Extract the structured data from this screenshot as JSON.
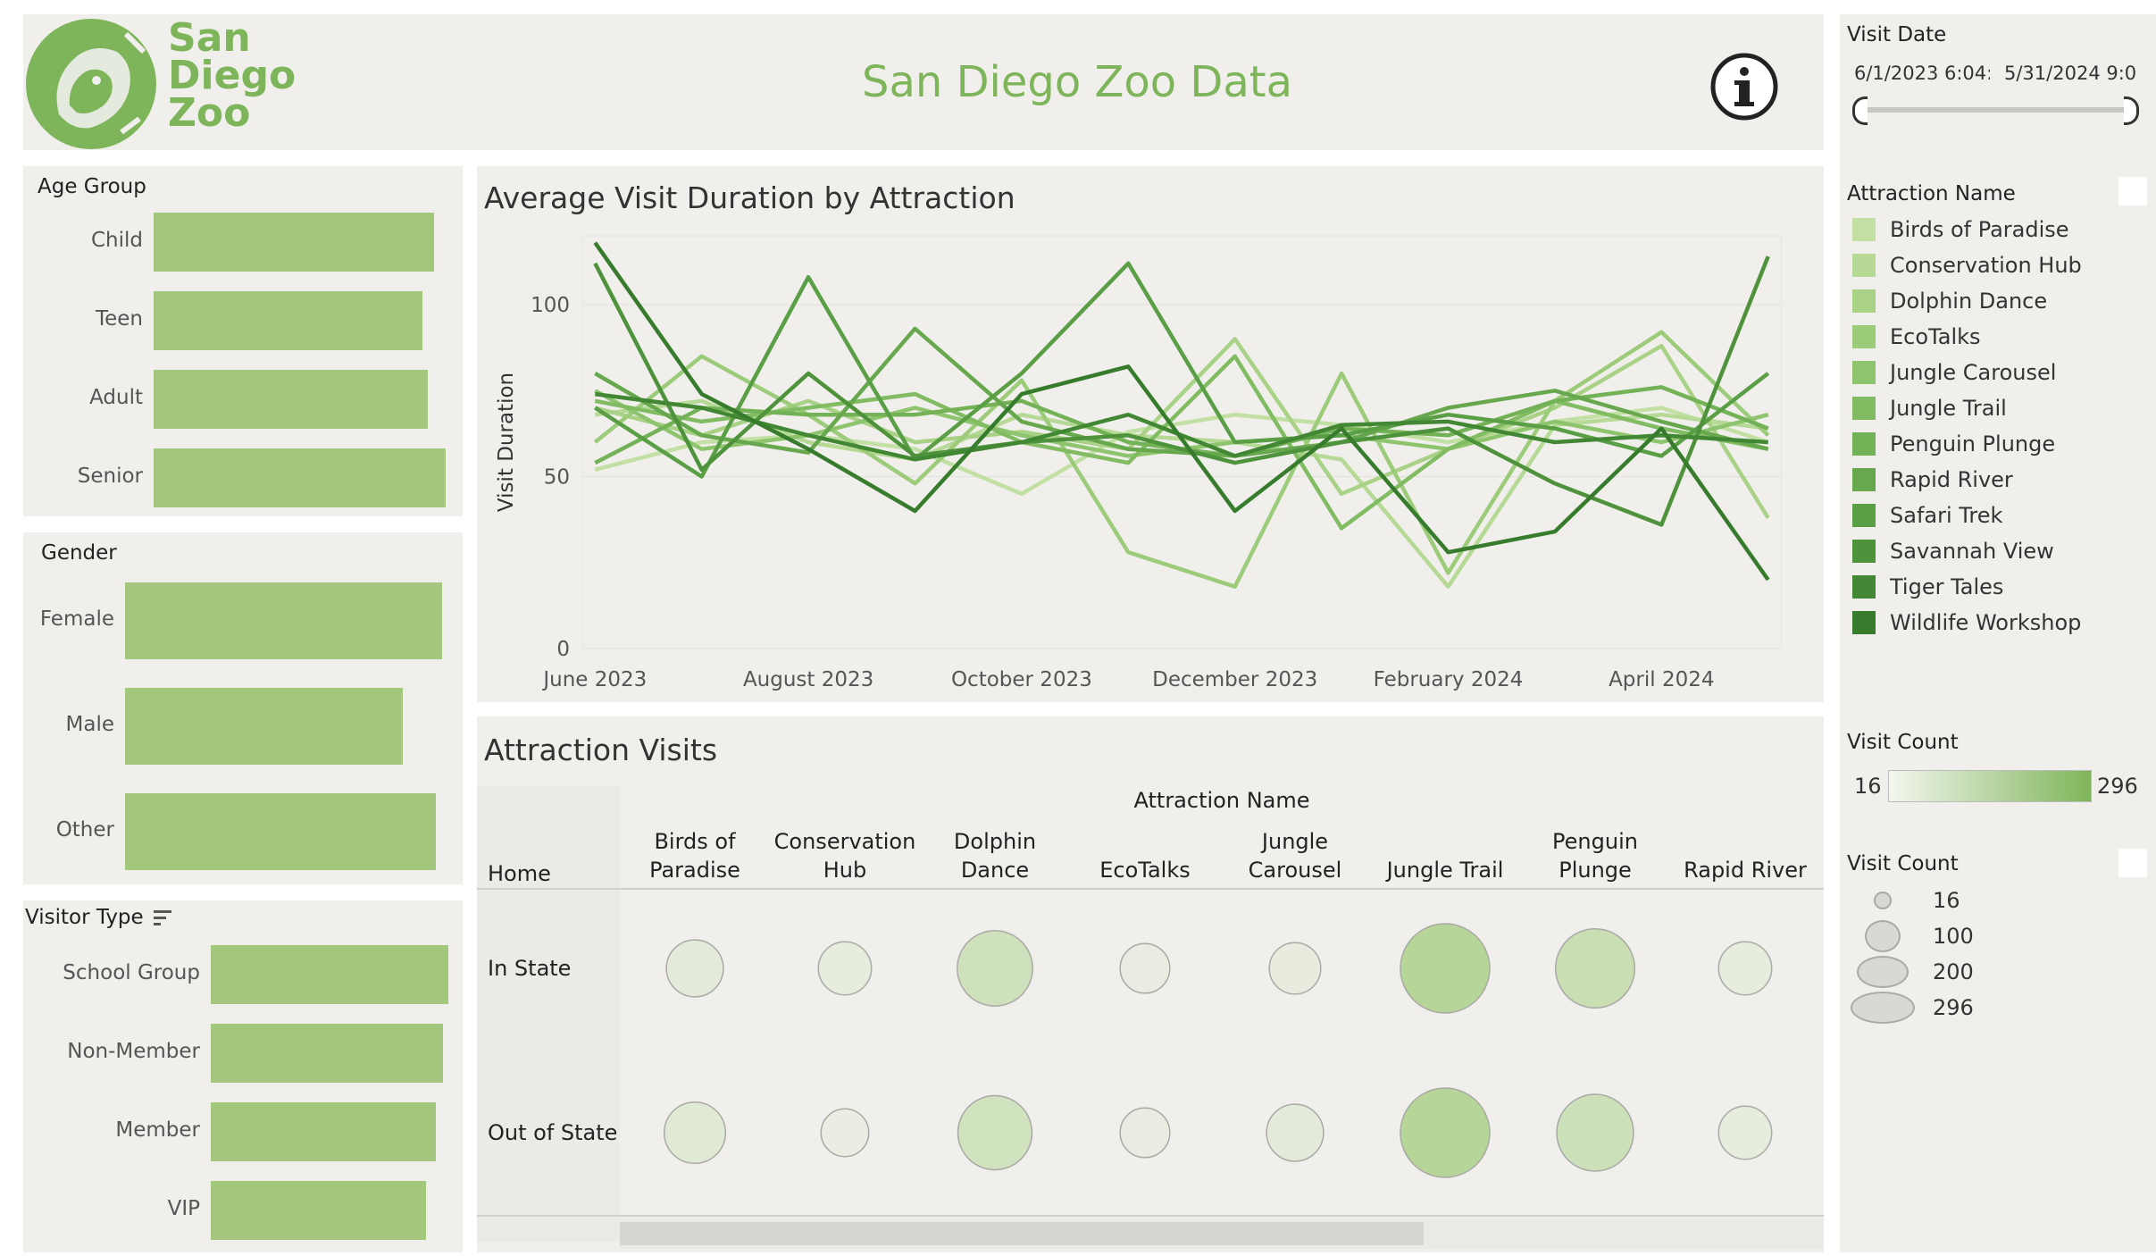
{
  "header": {
    "logo_lines": [
      "San",
      "Diego",
      "Zoo"
    ],
    "title": "San Diego Zoo Data",
    "info_icon": "info-circle-icon",
    "accent": "#7fb55a"
  },
  "age_group": {
    "title": "Age Group",
    "items": [
      {
        "label": "Child",
        "value": 0.94
      },
      {
        "label": "Teen",
        "value": 0.9
      },
      {
        "label": "Adult",
        "value": 0.92
      },
      {
        "label": "Senior",
        "value": 0.98
      }
    ]
  },
  "gender": {
    "title": "Gender",
    "items": [
      {
        "label": "Female",
        "value": 0.97
      },
      {
        "label": "Male",
        "value": 0.85
      },
      {
        "label": "Other",
        "value": 0.95
      }
    ]
  },
  "visitor_type": {
    "title": "Visitor Type",
    "sort_icon": "sort-icon",
    "items": [
      {
        "label": "School Group",
        "value": 0.97
      },
      {
        "label": "Non-Member",
        "value": 0.95
      },
      {
        "label": "Member",
        "value": 0.92
      },
      {
        "label": "VIP",
        "value": 0.88
      }
    ]
  },
  "chart_data": {
    "type": "line",
    "title": "Average Visit Duration by Attraction",
    "xlabel": "",
    "ylabel": "Visit Duration",
    "ylim": [
      0,
      120
    ],
    "yticks": [
      0,
      50,
      100
    ],
    "x": [
      "Jun 2023",
      "Jul 2023",
      "Aug 2023",
      "Sep 2023",
      "Oct 2023",
      "Nov 2023",
      "Dec 2023",
      "Jan 2024",
      "Feb 2024",
      "Mar 2024",
      "Apr 2024",
      "May 2024"
    ],
    "xtick_labels": [
      {
        "label": "June 2023",
        "x": 0
      },
      {
        "label": "August 2023",
        "x": 2
      },
      {
        "label": "October 2023",
        "x": 4
      },
      {
        "label": "December 2023",
        "x": 6
      },
      {
        "label": "February 2024",
        "x": 8
      },
      {
        "label": "April 2024",
        "x": 10
      }
    ],
    "grid": true,
    "series": [
      {
        "name": "Birds of Paradise",
        "color": "#c2e0a4",
        "values": [
          52,
          60,
          62,
          58,
          45,
          63,
          68,
          65,
          60,
          66,
          70,
          60
        ]
      },
      {
        "name": "Conservation Hub",
        "color": "#b6d995",
        "values": [
          68,
          72,
          60,
          55,
          68,
          62,
          60,
          55,
          18,
          65,
          68,
          64
        ]
      },
      {
        "name": "Dolphin Dance",
        "color": "#a9d287",
        "values": [
          70,
          62,
          72,
          60,
          63,
          58,
          90,
          45,
          58,
          70,
          88,
          38
        ]
      },
      {
        "name": "EcoTalks",
        "color": "#9ccb79",
        "values": [
          60,
          85,
          68,
          48,
          78,
          28,
          18,
          80,
          22,
          72,
          92,
          62
        ]
      },
      {
        "name": "Jungle Carousel",
        "color": "#8ec46d",
        "values": [
          75,
          58,
          62,
          70,
          62,
          56,
          60,
          62,
          58,
          66,
          60,
          68
        ]
      },
      {
        "name": "Jungle Trail",
        "color": "#81bc62",
        "values": [
          72,
          66,
          70,
          74,
          60,
          54,
          85,
          35,
          58,
          72,
          64,
          58
        ]
      },
      {
        "name": "Penguin Plunge",
        "color": "#74b257",
        "values": [
          54,
          70,
          68,
          68,
          72,
          60,
          56,
          64,
          62,
          72,
          76,
          64
        ]
      },
      {
        "name": "Rapid River",
        "color": "#67a84e",
        "values": [
          80,
          62,
          57,
          93,
          66,
          58,
          56,
          60,
          70,
          75,
          66,
          58
        ]
      },
      {
        "name": "Safari Trek",
        "color": "#5a9e45",
        "values": [
          70,
          50,
          108,
          55,
          80,
          112,
          60,
          62,
          68,
          64,
          56,
          80
        ]
      },
      {
        "name": "Savannah View",
        "color": "#4e933c",
        "values": [
          112,
          52,
          80,
          56,
          60,
          62,
          54,
          60,
          64,
          48,
          36,
          114
        ]
      },
      {
        "name": "Tiger Tales",
        "color": "#428834",
        "values": [
          74,
          70,
          62,
          55,
          60,
          68,
          56,
          65,
          66,
          60,
          62,
          60
        ]
      },
      {
        "name": "Wildlife Workshop",
        "color": "#377c2d",
        "values": [
          118,
          74,
          58,
          40,
          74,
          82,
          40,
          64,
          28,
          34,
          64,
          20
        ]
      }
    ]
  },
  "bubble": {
    "title": "Attraction Visits",
    "column_group": "Attraction Name",
    "row_header": "Home",
    "columns": [
      "Birds of Paradise",
      "Conservation Hub",
      "Dolphin Dance",
      "EcoTalks",
      "Jungle Carousel",
      "Jungle Trail",
      "Penguin Plunge",
      "Rapid River"
    ],
    "rows": [
      {
        "label": "In State",
        "counts": [
          60,
          45,
          170,
          35,
          40,
          296,
          200,
          45
        ]
      },
      {
        "label": "Out of State",
        "counts": [
          80,
          30,
          160,
          35,
          60,
          296,
          180,
          45
        ]
      }
    ]
  },
  "sidebar": {
    "visit_date": {
      "title": "Visit Date",
      "start": "6/1/2023 6:04:",
      "end": "5/31/2024 9:0",
      "range_fraction": [
        0,
        1
      ]
    },
    "attraction_legend_title": "Attraction Name",
    "visit_count_color": {
      "title": "Visit Count",
      "min": "16",
      "max": "296"
    },
    "visit_count_size": {
      "title": "Visit Count",
      "items": [
        "16",
        "100",
        "200",
        "296"
      ]
    }
  }
}
